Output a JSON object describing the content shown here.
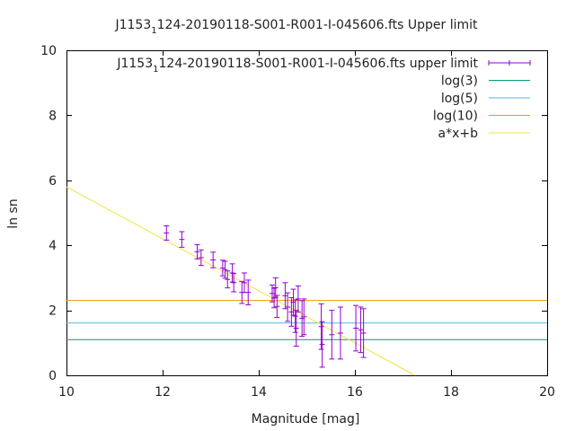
{
  "chart_data": {
    "type": "scatter",
    "title_main": "J1153",
    "title_sub": "1",
    "title_rest": "124-20190118-S001-R001-I-045606.fts Upper limit",
    "xlabel": "Magnitude [mag]",
    "ylabel": "ln sn",
    "xlim": [
      10,
      20
    ],
    "ylim": [
      0,
      10
    ],
    "xticks": [
      "10",
      "12",
      "14",
      "16",
      "18",
      "20"
    ],
    "yticks": [
      "0",
      "2",
      "4",
      "6",
      "8",
      "10"
    ],
    "grid": false,
    "legend_position": "top-right",
    "series": [
      {
        "name_main": "J1153",
        "name_sub": "1",
        "name_rest": "124-20190118-S001-R001-I-045606.fts upper limit",
        "kind": "errorbars",
        "color": "#9400d3",
        "points": [
          {
            "x": 12.08,
            "y": 4.38,
            "err": 0.22
          },
          {
            "x": 12.4,
            "y": 4.18,
            "err": 0.24
          },
          {
            "x": 12.72,
            "y": 3.8,
            "err": 0.22
          },
          {
            "x": 12.8,
            "y": 3.62,
            "err": 0.24
          },
          {
            "x": 13.05,
            "y": 3.55,
            "err": 0.24
          },
          {
            "x": 13.25,
            "y": 3.3,
            "err": 0.24
          },
          {
            "x": 13.3,
            "y": 3.25,
            "err": 0.26
          },
          {
            "x": 13.35,
            "y": 2.95,
            "err": 0.26
          },
          {
            "x": 13.45,
            "y": 3.15,
            "err": 0.28
          },
          {
            "x": 13.48,
            "y": 2.85,
            "err": 0.28
          },
          {
            "x": 13.65,
            "y": 2.55,
            "err": 0.34
          },
          {
            "x": 13.7,
            "y": 2.85,
            "err": 0.3
          },
          {
            "x": 13.78,
            "y": 2.55,
            "err": 0.38
          },
          {
            "x": 14.28,
            "y": 2.52,
            "err": 0.26
          },
          {
            "x": 14.32,
            "y": 2.38,
            "err": 0.3
          },
          {
            "x": 14.35,
            "y": 2.7,
            "err": 0.3
          },
          {
            "x": 14.38,
            "y": 2.12,
            "err": 0.34
          },
          {
            "x": 14.55,
            "y": 2.45,
            "err": 0.4
          },
          {
            "x": 14.6,
            "y": 2.1,
            "err": 0.44
          },
          {
            "x": 14.68,
            "y": 1.95,
            "err": 0.44
          },
          {
            "x": 14.72,
            "y": 2.25,
            "err": 0.4
          },
          {
            "x": 14.76,
            "y": 1.82,
            "err": 0.5
          },
          {
            "x": 14.78,
            "y": 1.45,
            "err": 0.55
          },
          {
            "x": 14.82,
            "y": 2.35,
            "err": 0.4
          },
          {
            "x": 14.9,
            "y": 1.75,
            "err": 0.55
          },
          {
            "x": 14.94,
            "y": 1.8,
            "err": 0.55
          },
          {
            "x": 15.3,
            "y": 1.5,
            "err": 0.7
          },
          {
            "x": 15.32,
            "y": 0.95,
            "err": 0.7
          },
          {
            "x": 15.52,
            "y": 1.25,
            "err": 0.75
          },
          {
            "x": 15.7,
            "y": 1.3,
            "err": 0.8
          },
          {
            "x": 16.02,
            "y": 1.45,
            "err": 0.7
          },
          {
            "x": 16.12,
            "y": 1.4,
            "err": 0.7
          },
          {
            "x": 16.18,
            "y": 1.3,
            "err": 0.75
          }
        ]
      },
      {
        "name": "log(3)",
        "kind": "hline",
        "color": "#009e73",
        "y": 1.0986
      },
      {
        "name": "log(5)",
        "kind": "hline",
        "color": "#56b4e9",
        "y": 1.6094
      },
      {
        "name": "log(10)",
        "kind": "hline",
        "color": "#e69f00",
        "y": 2.3026
      },
      {
        "name": "a*x+b",
        "kind": "fit",
        "color": "#f0e442",
        "a": -0.8,
        "b": 13.8,
        "x": [
          10,
          17.25
        ]
      }
    ]
  }
}
